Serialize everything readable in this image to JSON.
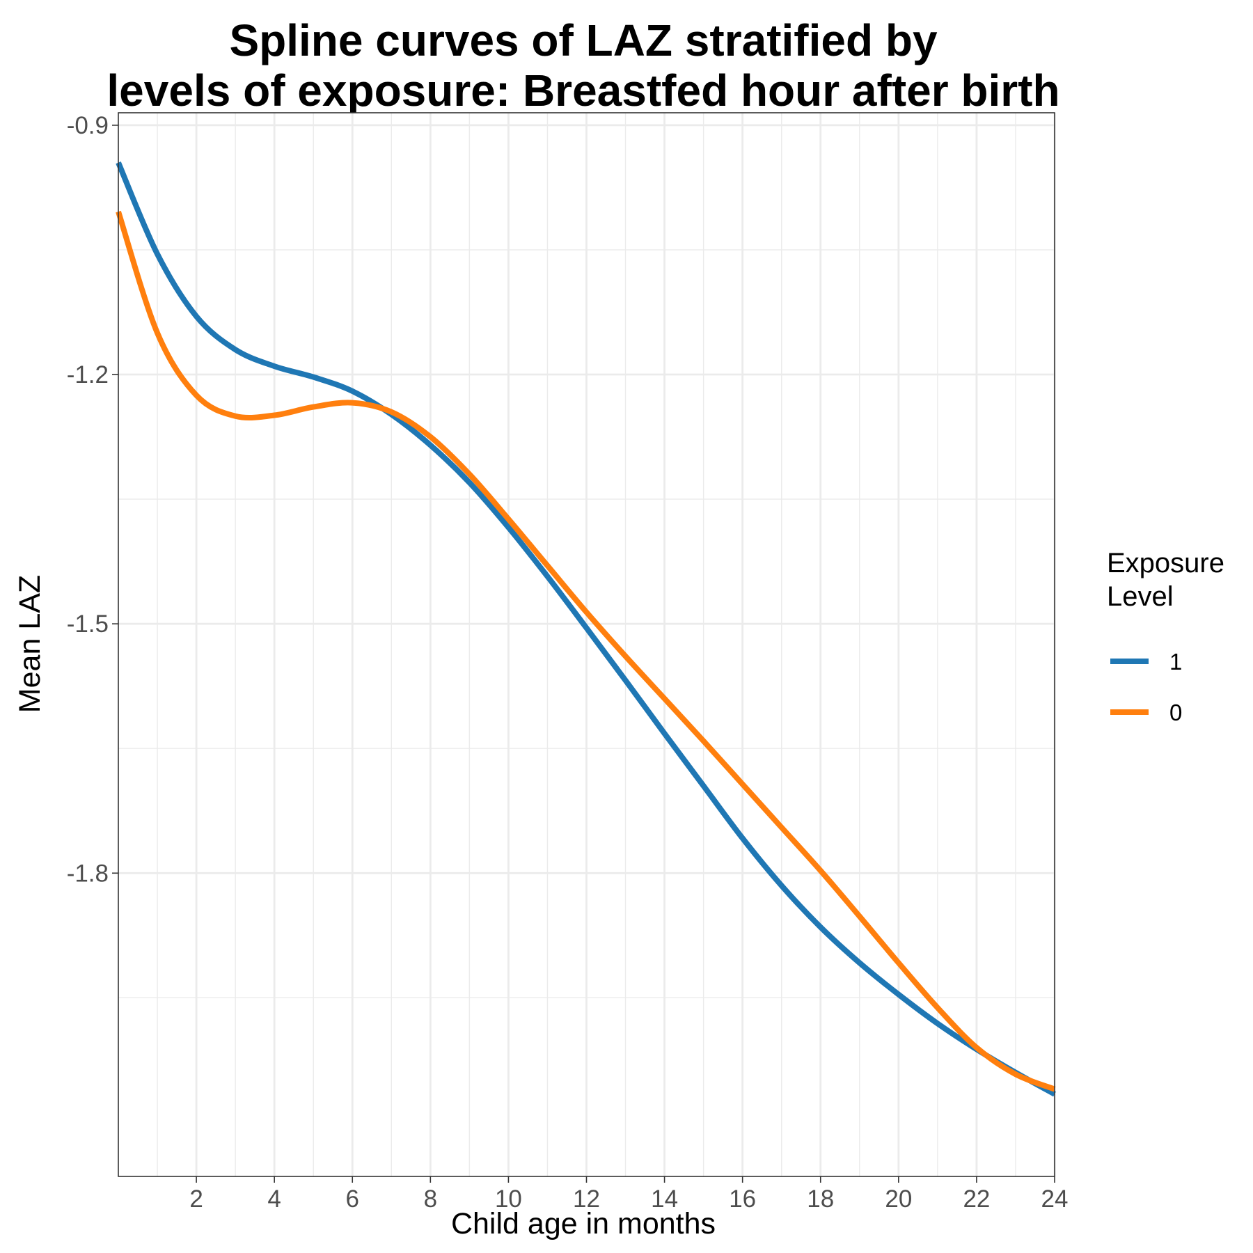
{
  "chart_data": {
    "type": "line",
    "title_lines": [
      "Spline curves of LAZ stratified by",
      "levels of exposure: Breastfed hour after birth"
    ],
    "xlabel": "Child age in months",
    "ylabel": "Mean LAZ",
    "xlim": [
      0,
      24
    ],
    "ylim": [
      -2.165,
      -0.885
    ],
    "x_ticks": [
      2,
      4,
      6,
      8,
      10,
      12,
      14,
      16,
      18,
      20,
      22,
      24
    ],
    "x_minor_ticks": [
      1,
      3,
      5,
      7,
      9,
      11,
      13,
      15,
      17,
      19,
      21,
      23
    ],
    "y_ticks": [
      -0.9,
      -1.2,
      -1.5,
      -1.8
    ],
    "y_tick_labels": [
      "-0.9",
      "-1.2",
      "-1.5",
      "-1.8"
    ],
    "y_minor_ticks": [
      -1.05,
      -1.35,
      -1.65,
      -1.95
    ],
    "grid": true,
    "legend": {
      "title_lines": [
        "Exposure",
        "Level"
      ],
      "position": "right"
    },
    "x": [
      0,
      1,
      2,
      3,
      4,
      5,
      6,
      7,
      8,
      9,
      10,
      11,
      12,
      13,
      14,
      15,
      16,
      17,
      18,
      19,
      20,
      21,
      22,
      23,
      24
    ],
    "series": [
      {
        "name": "1",
        "color": "#1f77b4",
        "values": [
          -0.945,
          -1.055,
          -1.13,
          -1.17,
          -1.19,
          -1.203,
          -1.22,
          -1.248,
          -1.285,
          -1.33,
          -1.384,
          -1.443,
          -1.505,
          -1.568,
          -1.632,
          -1.695,
          -1.758,
          -1.815,
          -1.865,
          -1.908,
          -1.946,
          -1.981,
          -2.012,
          -2.04,
          -2.066
        ]
      },
      {
        "name": "0",
        "color": "#ff7f0e",
        "values": [
          -1.004,
          -1.15,
          -1.225,
          -1.25,
          -1.249,
          -1.239,
          -1.234,
          -1.245,
          -1.275,
          -1.32,
          -1.374,
          -1.43,
          -1.486,
          -1.539,
          -1.59,
          -1.641,
          -1.693,
          -1.745,
          -1.797,
          -1.852,
          -1.908,
          -1.962,
          -2.01,
          -2.042,
          -2.06
        ]
      }
    ]
  }
}
